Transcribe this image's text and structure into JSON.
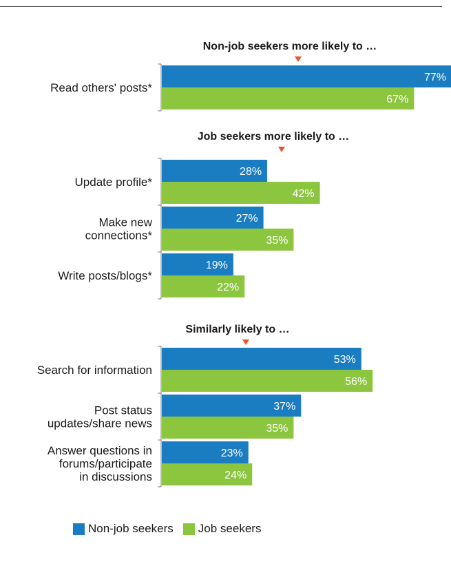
{
  "chart_data": {
    "type": "bar",
    "orientation": "horizontal",
    "title": "",
    "xlabel": "",
    "ylabel": "",
    "xlim": [
      0,
      77
    ],
    "grid": false,
    "legend_position": "bottom",
    "colors": {
      "non_job_seekers": "#1b7dc1",
      "job_seekers": "#8cc63f",
      "marker": "#e8552a",
      "axis": "#777777"
    },
    "series": [
      {
        "key": "non_job_seekers",
        "name": "Non-job seekers"
      },
      {
        "key": "job_seekers",
        "name": "Job seekers"
      }
    ],
    "groups": [
      {
        "heading": "Non-job seekers more likely to …",
        "categories": [
          {
            "label": [
              "Read others' posts*"
            ],
            "values": [
              77,
              67
            ],
            "value_labels": [
              "77%",
              "67%"
            ]
          }
        ]
      },
      {
        "heading": "Job seekers more likely to …",
        "categories": [
          {
            "label": [
              "Update profile*"
            ],
            "values": [
              28,
              42
            ],
            "value_labels": [
              "28%",
              "42%"
            ]
          },
          {
            "label": [
              "Make new",
              "connections*"
            ],
            "values": [
              27,
              35
            ],
            "value_labels": [
              "27%",
              "35%"
            ]
          },
          {
            "label": [
              "Write posts/blogs*"
            ],
            "values": [
              19,
              22
            ],
            "value_labels": [
              "19%",
              "22%"
            ]
          }
        ]
      },
      {
        "heading": "Similarly likely to …",
        "categories": [
          {
            "label": [
              "Search for information"
            ],
            "values": [
              53,
              56
            ],
            "value_labels": [
              "53%",
              "56%"
            ]
          },
          {
            "label": [
              "Post status",
              "updates/share news"
            ],
            "values": [
              37,
              35
            ],
            "value_labels": [
              "37%",
              "35%"
            ]
          },
          {
            "label": [
              "Answer questions in",
              "forums/participate",
              "in discussions"
            ],
            "values": [
              23,
              24
            ],
            "value_labels": [
              "23%",
              "24%"
            ]
          }
        ]
      }
    ]
  }
}
